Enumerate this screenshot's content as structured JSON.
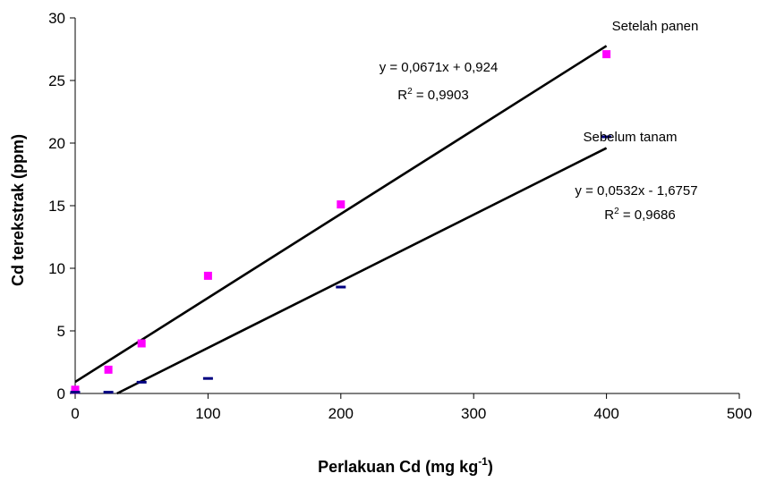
{
  "chart_data": {
    "type": "scatter",
    "xlabel": "Perlakuan Cd (mg kg",
    "xlabel_sup": "-1",
    "xlabel_end": ")",
    "ylabel": "Cd terekstrak (ppm)",
    "xlim": [
      0,
      500
    ],
    "ylim": [
      0,
      30
    ],
    "xticks": [
      0,
      100,
      200,
      300,
      400,
      500
    ],
    "yticks": [
      0,
      5,
      10,
      15,
      20,
      25,
      30
    ],
    "grid": false,
    "series": [
      {
        "name": "Setelah panen",
        "marker": "square",
        "color": "#ff00ff",
        "points": [
          [
            0,
            0.3
          ],
          [
            25,
            1.9
          ],
          [
            50,
            4.0
          ],
          [
            100,
            9.4
          ],
          [
            200,
            15.1
          ],
          [
            400,
            27.1
          ]
        ],
        "trendline": {
          "slope": 0.0671,
          "intercept": 0.924,
          "x_range": [
            0,
            400
          ]
        },
        "equation": "y = 0,0671x + 0,924",
        "r2_label": "R",
        "r2_sup": "2",
        "r2_value": " = 0,9903"
      },
      {
        "name": "Sebelum tanam",
        "marker": "dash",
        "color": "#000080",
        "points": [
          [
            0,
            0.1
          ],
          [
            25,
            0.1
          ],
          [
            50,
            0.9
          ],
          [
            100,
            1.2
          ],
          [
            200,
            8.5
          ],
          [
            400,
            20.5
          ]
        ],
        "trendline": {
          "slope": 0.0532,
          "intercept": -1.6757,
          "x_range": [
            31.5,
            400
          ]
        },
        "equation": "y = 0,0532x - 1,6757",
        "r2_label": "R",
        "r2_sup": "2",
        "r2_value": " = 0,9686"
      }
    ]
  }
}
